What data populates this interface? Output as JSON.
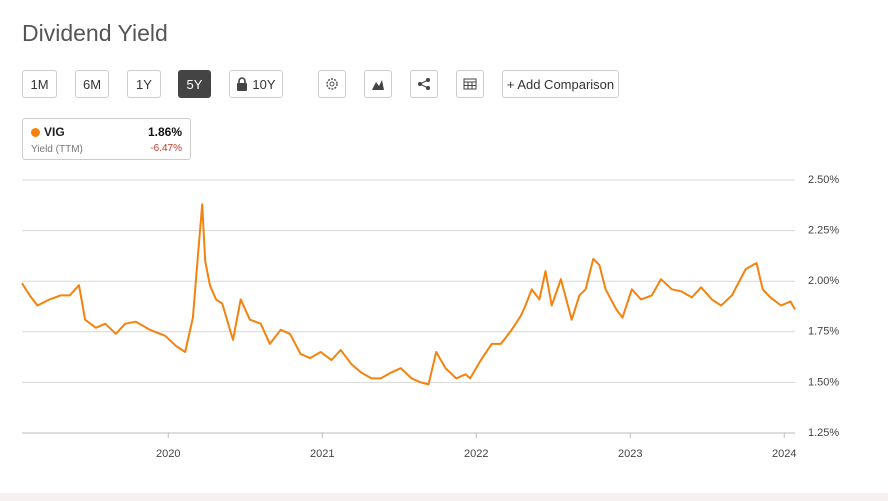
{
  "title": "Dividend Yield",
  "range_buttons": [
    "1M",
    "6M",
    "1Y",
    "5Y",
    "10Y"
  ],
  "selected_range": 3,
  "comparison_button": "+ Add Comparison",
  "legend": {
    "ticker": "VIG",
    "label": "Yield (TTM)",
    "value": "1.86%",
    "change": "-6.47%"
  },
  "chart_data": {
    "type": "line",
    "x": [
      2019.05,
      2019.1,
      2019.15,
      2019.23,
      2019.3,
      2019.36,
      2019.42,
      2019.46,
      2019.53,
      2019.59,
      2019.66,
      2019.72,
      2019.79,
      2019.88,
      2019.98,
      2020.05,
      2020.11,
      2020.16,
      2020.19,
      2020.22,
      2020.24,
      2020.27,
      2020.31,
      2020.35,
      2020.42,
      2020.47,
      2020.53,
      2020.6,
      2020.66,
      2020.73,
      2020.79,
      2020.86,
      2020.92,
      2020.99,
      2021.06,
      2021.12,
      2021.19,
      2021.25,
      2021.32,
      2021.38,
      2021.45,
      2021.51,
      2021.58,
      2021.64,
      2021.69,
      2021.74,
      2021.8,
      2021.87,
      2021.93,
      2021.96,
      2022.03,
      2022.1,
      2022.16,
      2022.23,
      2022.29,
      2022.32,
      2022.36,
      2022.41,
      2022.45,
      2022.49,
      2022.55,
      2022.62,
      2022.67,
      2022.71,
      2022.76,
      2022.8,
      2022.84,
      2022.91,
      2022.95,
      2023.01,
      2023.07,
      2023.14,
      2023.2,
      2023.27,
      2023.33,
      2023.4,
      2023.46,
      2023.53,
      2023.59,
      2023.66,
      2023.75,
      2023.82,
      2023.86,
      2023.91,
      2023.98,
      2024.04,
      2024.07
    ],
    "series": [
      {
        "name": "VIG",
        "color": "#f5820f",
        "values": [
          1.99,
          1.93,
          1.88,
          1.91,
          1.93,
          1.93,
          1.98,
          1.81,
          1.77,
          1.79,
          1.74,
          1.79,
          1.8,
          1.76,
          1.73,
          1.68,
          1.65,
          1.82,
          2.1,
          2.38,
          2.1,
          1.98,
          1.91,
          1.89,
          1.71,
          1.91,
          1.81,
          1.79,
          1.69,
          1.76,
          1.74,
          1.64,
          1.62,
          1.65,
          1.61,
          1.66,
          1.59,
          1.55,
          1.52,
          1.52,
          1.55,
          1.57,
          1.52,
          1.5,
          1.49,
          1.65,
          1.57,
          1.52,
          1.54,
          1.52,
          1.61,
          1.69,
          1.69,
          1.76,
          1.83,
          1.88,
          1.96,
          1.91,
          2.05,
          1.88,
          2.01,
          1.81,
          1.93,
          1.96,
          2.11,
          2.08,
          1.96,
          1.86,
          1.82,
          1.96,
          1.91,
          1.93,
          2.01,
          1.96,
          1.95,
          1.92,
          1.97,
          1.91,
          1.88,
          1.93,
          2.06,
          2.09,
          1.96,
          1.92,
          1.88,
          1.9,
          1.86
        ]
      }
    ],
    "xlim": [
      2019.05,
      2024.07
    ],
    "xticks": [
      2020,
      2021,
      2022,
      2023,
      2024
    ],
    "ylim": [
      1.25,
      2.5
    ],
    "yticks": [
      {
        "value": 1.25,
        "label": "1.25%"
      },
      {
        "value": 1.5,
        "label": "1.50%"
      },
      {
        "value": 1.75,
        "label": "1.75%"
      },
      {
        "value": 2,
        "label": "2.00%"
      },
      {
        "value": 2.25,
        "label": "2.25%"
      },
      {
        "value": 2.5,
        "label": "2.50%"
      }
    ],
    "grid": true
  }
}
